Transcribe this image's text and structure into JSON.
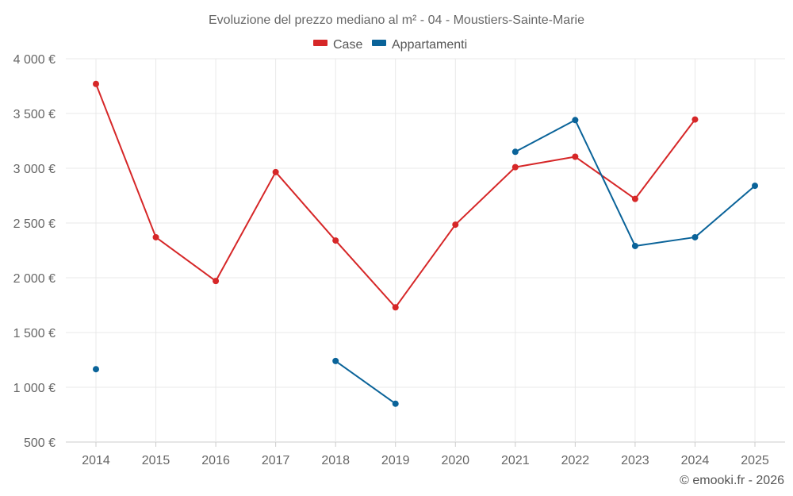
{
  "chart_data": {
    "type": "line",
    "title": "Evoluzione del prezzo mediano al m² - 04 - Moustiers-Sainte-Marie",
    "categories": [
      "2014",
      "2015",
      "2016",
      "2017",
      "2018",
      "2019",
      "2020",
      "2021",
      "2022",
      "2023",
      "2024",
      "2025"
    ],
    "ylim": [
      500,
      4000
    ],
    "yticks": [
      500,
      1000,
      1500,
      2000,
      2500,
      3000,
      3500,
      4000
    ],
    "ytick_labels": [
      "500 €",
      "1 000 €",
      "1 500 €",
      "2 000 €",
      "2 500 €",
      "3 000 €",
      "3 500 €",
      "4 000 €"
    ],
    "grid": true,
    "legend_position": "top-center",
    "series": [
      {
        "name": "Case",
        "color": "#d62728",
        "values": [
          3770,
          2370,
          1970,
          2965,
          2340,
          1730,
          2485,
          3010,
          3105,
          2720,
          3445,
          null
        ]
      },
      {
        "name": "Appartamenti",
        "color": "#0a6399",
        "values": [
          1165,
          null,
          null,
          null,
          1240,
          850,
          null,
          3150,
          3440,
          2290,
          2370,
          2840
        ]
      }
    ]
  },
  "credit": "© emooki.fr - 2026"
}
